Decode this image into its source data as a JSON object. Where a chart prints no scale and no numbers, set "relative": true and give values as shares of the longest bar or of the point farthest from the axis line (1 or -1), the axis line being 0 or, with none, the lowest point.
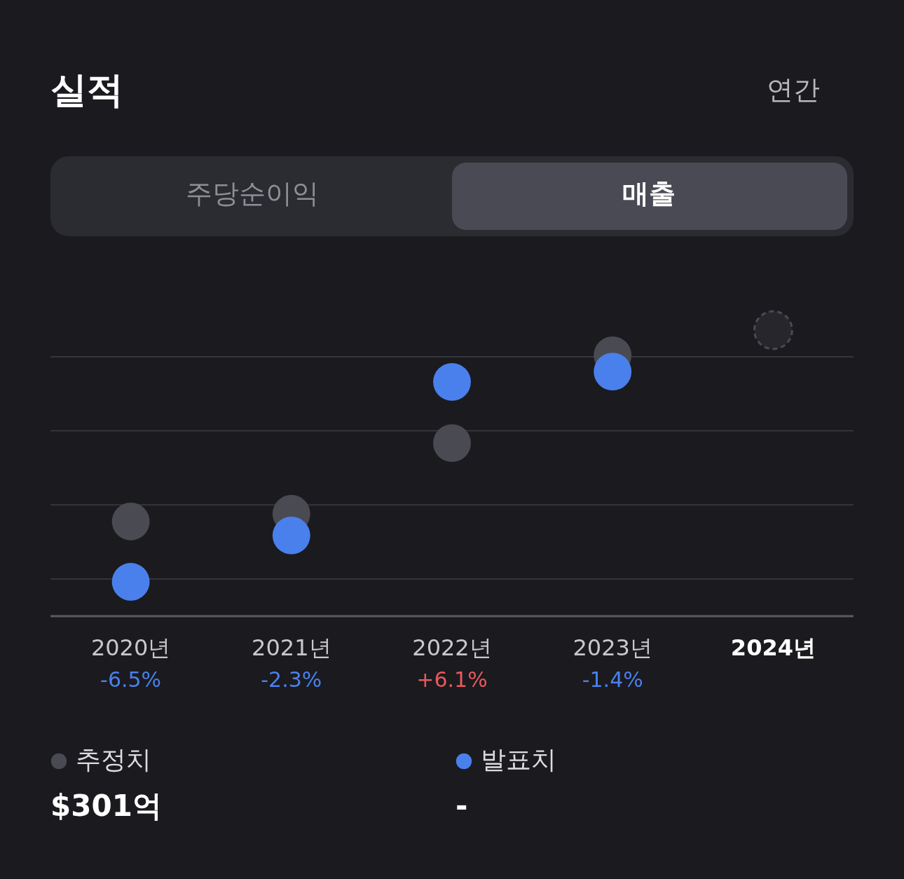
{
  "chart_data": {
    "type": "scatter",
    "title": "실적",
    "relative": true,
    "marker": "circle",
    "grid": true,
    "legend": "bottom",
    "categories": [
      "2020년",
      "2021년",
      "2022년",
      "2023년",
      "2024년"
    ],
    "series": [
      {
        "name": "추정치",
        "color": "#4a4a52",
        "values": [
          0.331,
          0.358,
          0.605,
          0.912,
          1.0
        ]
      },
      {
        "name": "발표치",
        "color": "#4a80ec",
        "values": [
          0.12,
          0.282,
          0.819,
          0.855,
          null
        ]
      }
    ],
    "annotations": [
      "연간",
      "주당순이익",
      "매출",
      "$301억",
      "-",
      "-6.5%",
      "-2.3%",
      "+6.1%",
      "-1.4%"
    ]
  }
}
